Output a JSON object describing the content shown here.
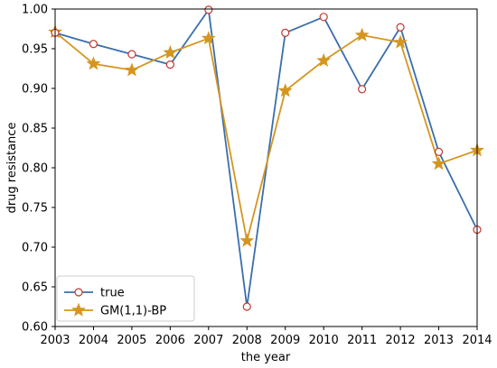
{
  "chart_data": {
    "type": "line",
    "title": "",
    "xlabel": "the year",
    "ylabel": "drug resistance",
    "x": [
      2003,
      2004,
      2005,
      2006,
      2007,
      2008,
      2009,
      2010,
      2011,
      2012,
      2013,
      2014
    ],
    "x_tick_labels": [
      "2003",
      "2004",
      "2005",
      "2006",
      "2007",
      "2008",
      "2009",
      "2010",
      "2011",
      "2012",
      "2013",
      "2014"
    ],
    "xlim": [
      2003,
      2014
    ],
    "ylim": [
      0.6,
      1.0
    ],
    "y_ticks": [
      0.6,
      0.65,
      0.7,
      0.75,
      0.8,
      0.85,
      0.9,
      0.95,
      1.0
    ],
    "y_tick_labels": [
      "0.60",
      "0.65",
      "0.70",
      "0.75",
      "0.80",
      "0.85",
      "0.90",
      "0.95",
      "1.00"
    ],
    "grid": false,
    "legend_position": "bottom-left",
    "series": [
      {
        "name": "true",
        "color": "#3a6ead",
        "marker": "circle",
        "marker_edge": "#c0392b",
        "values": [
          0.97,
          0.956,
          0.943,
          0.93,
          0.999,
          0.625,
          0.97,
          0.99,
          0.899,
          0.977,
          0.82,
          0.722
        ]
      },
      {
        "name": "GM(1,1)-BP",
        "color": "#d4961f",
        "marker": "star",
        "values": [
          0.971,
          0.931,
          0.923,
          0.945,
          0.963,
          0.708,
          0.897,
          0.935,
          0.967,
          0.958,
          0.805,
          0.822
        ]
      }
    ]
  }
}
